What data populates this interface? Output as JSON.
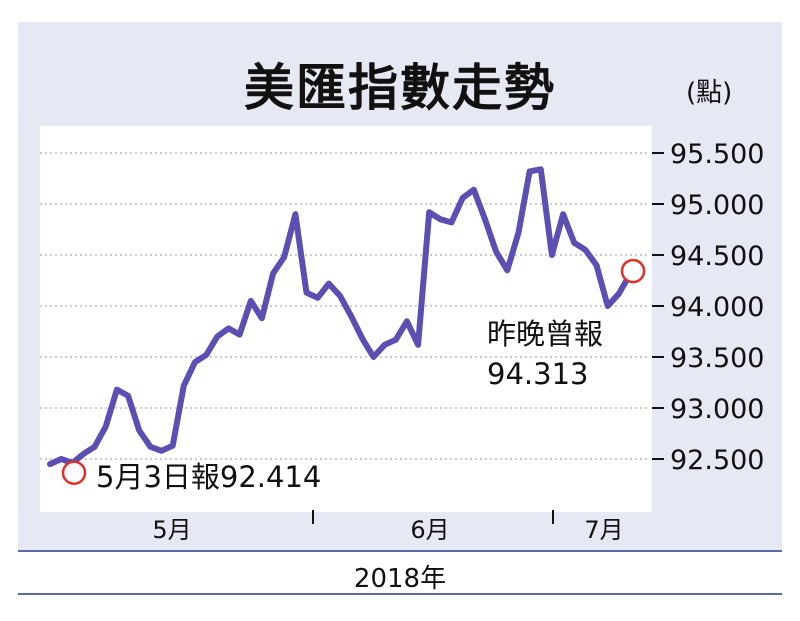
{
  "title": "美匯指數走勢",
  "unit_label": "(點)",
  "year_label": "2018年",
  "colors": {
    "line": "#5b4fb3",
    "marker": "#e0302a",
    "card_bg": "#e6e8f3",
    "plot_bg": "#ffffff"
  },
  "chart_data": {
    "type": "line",
    "title": "美匯指數走勢",
    "ylabel": "(點)",
    "xlabel": "2018年",
    "ylim": [
      92.0,
      95.7
    ],
    "yticks": [
      "95.500",
      "95.000",
      "94.500",
      "94.000",
      "93.500",
      "93.000",
      "92.500"
    ],
    "ytick_values": [
      95.5,
      95.0,
      94.5,
      94.0,
      93.5,
      93.0,
      92.5
    ],
    "x_month_labels": [
      "5月",
      "6月",
      "7月"
    ],
    "grid": true,
    "series": [
      {
        "values": [
          92.45,
          92.5,
          92.46,
          92.55,
          92.62,
          92.82,
          93.18,
          93.12,
          92.78,
          92.62,
          92.58,
          92.63,
          93.22,
          93.45,
          93.52,
          93.7,
          93.78,
          93.72,
          94.05,
          93.88,
          94.32,
          94.48,
          94.9,
          94.13,
          94.08,
          94.22,
          94.1,
          93.9,
          93.68,
          93.5,
          93.62,
          93.67,
          93.85,
          93.62,
          94.92,
          94.85,
          94.82,
          95.06,
          95.14,
          94.85,
          94.53,
          94.35,
          94.72,
          95.32,
          95.34,
          94.5,
          94.9,
          94.62,
          94.55,
          94.4,
          94.0,
          94.12,
          94.31
        ]
      }
    ],
    "annotations": [
      {
        "text": "5月3日報92.414",
        "value": 92.414
      },
      {
        "text": "昨晚曾報",
        "text2": "94.313",
        "value": 94.313
      }
    ]
  }
}
